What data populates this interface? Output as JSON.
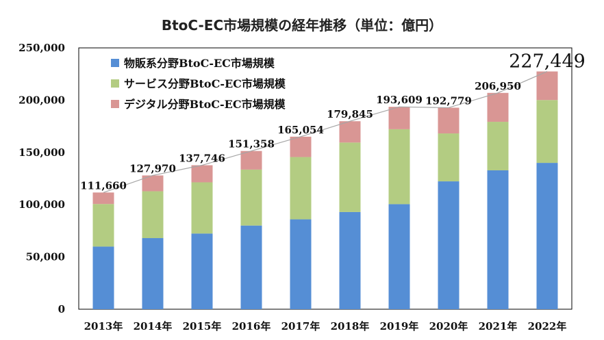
{
  "chart_data": {
    "type": "bar",
    "stacked": true,
    "title": "BtoC-EC市場規模の経年推移（単位：億円）",
    "categories": [
      "2013年",
      "2014年",
      "2015年",
      "2016年",
      "2017年",
      "2018年",
      "2019年",
      "2020年",
      "2021年",
      "2022年"
    ],
    "series": [
      {
        "name": "物販系分野BtoC-EC市場規模",
        "color": "#558ed5",
        "values": [
          59931,
          68043,
          72398,
          80043,
          86008,
          92992,
          100515,
          122333,
          132865,
          139997
        ]
      },
      {
        "name": "サービス分野BtoC-EC市場規模",
        "color": "#b3cc82",
        "values": [
          40710,
          44816,
          49014,
          53532,
          59568,
          66471,
          71672,
          45832,
          46424,
          60114
        ]
      },
      {
        "name": "デジタル分野BtoC-EC市場規模",
        "color": "#d99694",
        "values": [
          11019,
          15111,
          16334,
          17783,
          19478,
          20382,
          21422,
          24614,
          27661,
          27338
        ]
      }
    ],
    "totals": [
      "111,660",
      "127,970",
      "137,746",
      "151,358",
      "165,054",
      "179,845",
      "193,609",
      "192,779",
      "206,950",
      "227,449"
    ],
    "totals_values": [
      111660,
      127970,
      137746,
      151358,
      165054,
      179845,
      193609,
      192779,
      206950,
      227449
    ],
    "y_ticks": [
      "0",
      "50,000",
      "100,000",
      "150,000",
      "200,000",
      "250,000"
    ],
    "ylim": [
      0,
      250000
    ],
    "xlabel": "",
    "ylabel": "",
    "legend_position": "top-left",
    "grid": false,
    "total_trend_line_color": "#a6a6a6"
  }
}
